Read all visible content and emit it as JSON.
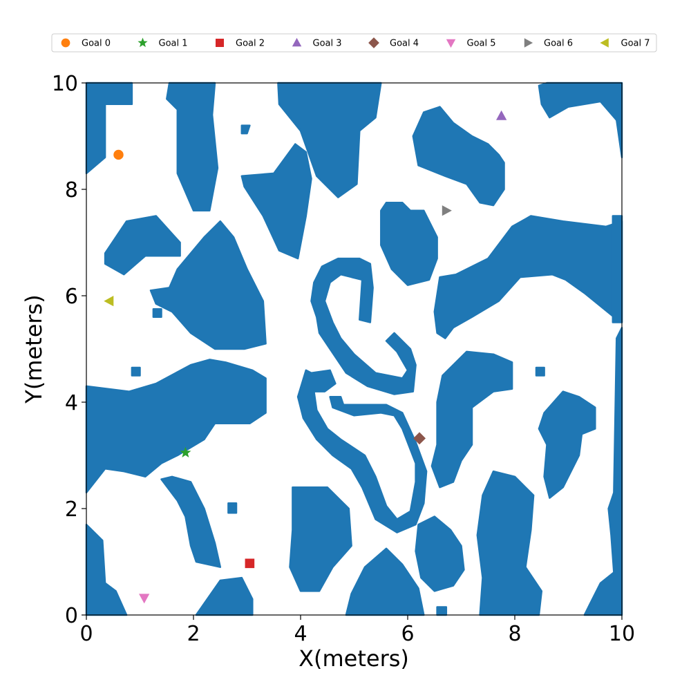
{
  "chart_data": {
    "type": "scatter",
    "title": "",
    "xlabel": "X(meters)",
    "ylabel": "Y(meters)",
    "xlim": [
      0,
      10
    ],
    "ylim": [
      0,
      10
    ],
    "xticks": [
      "0",
      "2",
      "4",
      "6",
      "8",
      "10"
    ],
    "yticks": [
      "0",
      "2",
      "4",
      "6",
      "8",
      "10"
    ],
    "grid": false,
    "legend_position": "top",
    "obstacle_color": "#1f77b4",
    "goals": [
      {
        "name": "Goal 0",
        "x": 0.6,
        "y": 8.65,
        "marker": "circle",
        "color": "#ff7f0e"
      },
      {
        "name": "Goal 1",
        "x": 1.85,
        "y": 3.05,
        "marker": "star",
        "color": "#2ca02c"
      },
      {
        "name": "Goal 2",
        "x": 3.05,
        "y": 0.97,
        "marker": "square",
        "color": "#d62728"
      },
      {
        "name": "Goal 3",
        "x": 7.75,
        "y": 9.38,
        "marker": "triangle-up",
        "color": "#9467bd"
      },
      {
        "name": "Goal 4",
        "x": 6.22,
        "y": 3.32,
        "marker": "diamond",
        "color": "#8c564b"
      },
      {
        "name": "Goal 5",
        "x": 1.08,
        "y": 0.32,
        "marker": "triangle-down",
        "color": "#e377c2"
      },
      {
        "name": "Goal 6",
        "x": 6.72,
        "y": 7.6,
        "marker": "triangle-right",
        "color": "#7f7f7f"
      },
      {
        "name": "Goal 7",
        "x": 0.43,
        "y": 5.9,
        "marker": "triangle-left",
        "color": "#bcbd22"
      }
    ],
    "obstacles": [
      [
        [
          0.0,
          8.3
        ],
        [
          0.35,
          8.6
        ],
        [
          0.35,
          9.6
        ],
        [
          0.85,
          9.6
        ],
        [
          0.85,
          10
        ],
        [
          0.0,
          10
        ]
      ],
      [
        [
          1.55,
          10
        ],
        [
          2.4,
          10
        ],
        [
          2.35,
          9.4
        ],
        [
          2.45,
          8.4
        ],
        [
          2.3,
          7.6
        ],
        [
          2.0,
          7.6
        ],
        [
          1.7,
          8.3
        ],
        [
          1.7,
          9.5
        ],
        [
          1.5,
          9.7
        ]
      ],
      [
        [
          0.35,
          6.8
        ],
        [
          0.75,
          7.4
        ],
        [
          1.3,
          7.5
        ],
        [
          1.75,
          7.0
        ],
        [
          1.75,
          6.75
        ],
        [
          1.1,
          6.75
        ],
        [
          0.7,
          6.4
        ],
        [
          0.35,
          6.6
        ]
      ],
      [
        [
          3.5,
          8.3
        ],
        [
          3.9,
          8.85
        ],
        [
          4.1,
          8.7
        ],
        [
          4.2,
          8.2
        ],
        [
          4.1,
          7.5
        ],
        [
          3.95,
          6.7
        ],
        [
          3.6,
          6.85
        ],
        [
          3.3,
          7.5
        ],
        [
          2.95,
          8.05
        ],
        [
          2.9,
          8.25
        ]
      ],
      [
        [
          1.3,
          5.85
        ],
        [
          1.2,
          6.1
        ],
        [
          1.55,
          6.15
        ],
        [
          1.7,
          6.5
        ],
        [
          2.2,
          7.1
        ],
        [
          2.5,
          7.4
        ],
        [
          2.75,
          7.1
        ],
        [
          3.0,
          6.5
        ],
        [
          3.3,
          5.9
        ],
        [
          3.35,
          5.1
        ],
        [
          2.95,
          5.0
        ],
        [
          2.4,
          5.0
        ],
        [
          1.95,
          5.3
        ],
        [
          1.6,
          5.7
        ]
      ],
      [
        [
          3.58,
          10
        ],
        [
          5.5,
          10
        ],
        [
          5.4,
          9.35
        ],
        [
          5.1,
          9.1
        ],
        [
          5.05,
          8.1
        ],
        [
          4.7,
          7.85
        ],
        [
          4.3,
          8.25
        ],
        [
          4.0,
          9.1
        ],
        [
          3.6,
          9.6
        ]
      ],
      [
        [
          6.3,
          9.45
        ],
        [
          6.6,
          9.55
        ],
        [
          6.85,
          9.25
        ],
        [
          7.2,
          9.0
        ],
        [
          7.5,
          8.85
        ],
        [
          7.7,
          8.65
        ],
        [
          7.8,
          8.5
        ],
        [
          7.8,
          8.0
        ],
        [
          7.6,
          7.7
        ],
        [
          7.35,
          7.75
        ],
        [
          7.1,
          8.1
        ],
        [
          6.7,
          8.25
        ],
        [
          6.2,
          8.45
        ],
        [
          6.1,
          9.0
        ]
      ],
      [
        [
          8.45,
          9.95
        ],
        [
          8.6,
          10
        ],
        [
          10,
          10
        ],
        [
          10,
          8.6
        ],
        [
          9.9,
          9.3
        ],
        [
          9.6,
          9.65
        ],
        [
          9.0,
          9.55
        ],
        [
          8.65,
          9.35
        ],
        [
          8.5,
          9.6
        ]
      ],
      [
        [
          5.5,
          7.6
        ],
        [
          5.6,
          7.75
        ],
        [
          5.9,
          7.75
        ],
        [
          6.05,
          7.6
        ],
        [
          6.3,
          7.6
        ],
        [
          6.55,
          7.1
        ],
        [
          6.55,
          6.7
        ],
        [
          6.4,
          6.3
        ],
        [
          6.0,
          6.2
        ],
        [
          5.7,
          6.5
        ],
        [
          5.5,
          6.95
        ]
      ],
      [
        [
          6.6,
          6.35
        ],
        [
          6.9,
          6.4
        ],
        [
          7.5,
          6.7
        ],
        [
          7.95,
          7.3
        ],
        [
          8.3,
          7.5
        ],
        [
          8.9,
          7.4
        ],
        [
          9.7,
          7.3
        ],
        [
          10,
          7.4
        ],
        [
          10,
          5.5
        ],
        [
          9.85,
          5.6
        ],
        [
          9.3,
          6.05
        ],
        [
          8.95,
          6.3
        ],
        [
          8.7,
          6.4
        ],
        [
          8.1,
          6.35
        ],
        [
          7.7,
          5.9
        ],
        [
          7.2,
          5.6
        ],
        [
          6.85,
          5.4
        ],
        [
          6.7,
          5.2
        ],
        [
          6.55,
          5.3
        ],
        [
          6.5,
          5.7
        ]
      ],
      [
        [
          0.0,
          4.3
        ],
        [
          0.8,
          4.2
        ],
        [
          1.3,
          4.35
        ],
        [
          1.95,
          4.7
        ],
        [
          2.3,
          4.8
        ],
        [
          2.6,
          4.75
        ],
        [
          3.1,
          4.6
        ],
        [
          3.35,
          4.45
        ],
        [
          3.35,
          3.8
        ],
        [
          3.05,
          3.6
        ],
        [
          2.4,
          3.6
        ],
        [
          2.2,
          3.3
        ],
        [
          1.7,
          3.0
        ],
        [
          1.4,
          2.85
        ],
        [
          1.1,
          2.6
        ],
        [
          0.7,
          2.7
        ],
        [
          0.35,
          2.75
        ],
        [
          0.0,
          2.3
        ]
      ],
      [
        [
          1.4,
          2.55
        ],
        [
          1.7,
          2.15
        ],
        [
          1.85,
          1.85
        ],
        [
          1.95,
          1.3
        ],
        [
          2.05,
          1.0
        ],
        [
          2.5,
          0.9
        ],
        [
          2.4,
          1.35
        ],
        [
          2.2,
          2.0
        ],
        [
          1.95,
          2.5
        ],
        [
          1.6,
          2.6
        ]
      ],
      [
        [
          0.0,
          1.7
        ],
        [
          0.3,
          1.4
        ],
        [
          0.35,
          0.6
        ],
        [
          0.55,
          0.45
        ],
        [
          0.75,
          0.0
        ],
        [
          0.0,
          0.0
        ]
      ],
      [
        [
          2.05,
          0.0
        ],
        [
          2.5,
          0.65
        ],
        [
          2.9,
          0.7
        ],
        [
          3.1,
          0.3
        ],
        [
          3.1,
          0.0
        ]
      ],
      [
        [
          3.85,
          2.4
        ],
        [
          4.5,
          2.4
        ],
        [
          4.9,
          2.0
        ],
        [
          4.95,
          1.3
        ],
        [
          4.6,
          0.9
        ],
        [
          4.35,
          0.45
        ],
        [
          4.0,
          0.45
        ],
        [
          3.8,
          0.9
        ],
        [
          3.85,
          1.6
        ]
      ],
      [
        [
          4.85,
          0.0
        ],
        [
          4.95,
          0.4
        ],
        [
          5.2,
          0.9
        ],
        [
          5.6,
          1.25
        ],
        [
          5.9,
          0.95
        ],
        [
          6.2,
          0.5
        ],
        [
          6.3,
          0.0
        ]
      ],
      [
        [
          6.2,
          1.7
        ],
        [
          6.5,
          1.85
        ],
        [
          6.8,
          1.6
        ],
        [
          7.0,
          1.3
        ],
        [
          7.05,
          0.85
        ],
        [
          6.85,
          0.55
        ],
        [
          6.5,
          0.45
        ],
        [
          6.25,
          0.7
        ],
        [
          6.15,
          1.2
        ]
      ],
      [
        [
          7.6,
          2.7
        ],
        [
          8.0,
          2.6
        ],
        [
          8.35,
          2.25
        ],
        [
          8.3,
          1.6
        ],
        [
          8.2,
          0.9
        ],
        [
          8.5,
          0.45
        ],
        [
          8.45,
          0.0
        ],
        [
          7.35,
          0.0
        ],
        [
          7.4,
          0.7
        ],
        [
          7.3,
          1.5
        ],
        [
          7.4,
          2.25
        ]
      ],
      [
        [
          6.65,
          4.5
        ],
        [
          7.1,
          4.95
        ],
        [
          7.6,
          4.9
        ],
        [
          7.95,
          4.75
        ],
        [
          7.95,
          4.25
        ],
        [
          7.6,
          4.2
        ],
        [
          7.2,
          3.9
        ],
        [
          7.2,
          3.2
        ],
        [
          7.0,
          2.9
        ],
        [
          6.85,
          2.5
        ],
        [
          6.6,
          2.4
        ],
        [
          6.45,
          2.8
        ],
        [
          6.55,
          3.2
        ],
        [
          6.55,
          4.0
        ]
      ],
      [
        [
          8.55,
          3.8
        ],
        [
          8.9,
          4.2
        ],
        [
          9.2,
          4.1
        ],
        [
          9.5,
          3.9
        ],
        [
          9.5,
          3.5
        ],
        [
          9.25,
          3.4
        ],
        [
          9.2,
          3.0
        ],
        [
          9.05,
          2.7
        ],
        [
          8.9,
          2.4
        ],
        [
          8.65,
          2.2
        ],
        [
          8.55,
          2.6
        ],
        [
          8.6,
          3.2
        ],
        [
          8.45,
          3.5
        ]
      ],
      [
        [
          9.75,
          2.0
        ],
        [
          9.8,
          1.5
        ],
        [
          9.85,
          0.8
        ],
        [
          9.6,
          0.6
        ],
        [
          9.4,
          0.2
        ],
        [
          9.3,
          0.0
        ],
        [
          10,
          0.0
        ],
        [
          10,
          5.4
        ],
        [
          9.9,
          5.2
        ],
        [
          9.85,
          2.3
        ]
      ],
      [
        [
          4.3,
          5.6
        ],
        [
          4.2,
          5.9
        ],
        [
          4.25,
          6.25
        ],
        [
          4.4,
          6.55
        ],
        [
          4.7,
          6.7
        ],
        [
          5.1,
          6.7
        ],
        [
          5.3,
          6.6
        ],
        [
          5.35,
          6.15
        ],
        [
          5.3,
          5.5
        ],
        [
          5.1,
          5.55
        ],
        [
          5.15,
          6.3
        ],
        [
          4.75,
          6.4
        ],
        [
          4.55,
          6.25
        ],
        [
          4.45,
          5.9
        ],
        [
          4.6,
          5.5
        ],
        [
          4.75,
          5.2
        ],
        [
          5.0,
          4.9
        ],
        [
          5.4,
          4.55
        ],
        [
          5.9,
          4.45
        ],
        [
          6.0,
          4.6
        ],
        [
          5.8,
          4.95
        ],
        [
          5.6,
          5.15
        ],
        [
          5.75,
          5.3
        ],
        [
          6.05,
          5.0
        ],
        [
          6.15,
          4.7
        ],
        [
          6.1,
          4.2
        ],
        [
          5.75,
          4.15
        ],
        [
          5.25,
          4.3
        ],
        [
          4.85,
          4.55
        ],
        [
          4.55,
          5.0
        ],
        [
          4.35,
          5.3
        ]
      ],
      [
        [
          4.1,
          4.6
        ],
        [
          4.2,
          4.55
        ],
        [
          4.55,
          4.6
        ],
        [
          4.65,
          4.35
        ],
        [
          4.45,
          4.2
        ],
        [
          4.25,
          4.2
        ],
        [
          4.3,
          3.85
        ],
        [
          4.5,
          3.5
        ],
        [
          4.75,
          3.3
        ],
        [
          5.2,
          3.0
        ],
        [
          5.4,
          2.6
        ],
        [
          5.6,
          2.05
        ],
        [
          5.8,
          1.8
        ],
        [
          6.05,
          1.95
        ],
        [
          6.15,
          2.5
        ],
        [
          6.15,
          2.85
        ],
        [
          5.9,
          3.5
        ],
        [
          5.75,
          3.75
        ],
        [
          5.5,
          3.8
        ],
        [
          5.0,
          3.75
        ],
        [
          4.6,
          3.9
        ],
        [
          4.55,
          4.1
        ],
        [
          4.75,
          4.1
        ],
        [
          4.8,
          3.95
        ],
        [
          5.15,
          3.95
        ],
        [
          5.6,
          3.95
        ],
        [
          5.9,
          3.8
        ],
        [
          6.15,
          3.25
        ],
        [
          6.35,
          2.7
        ],
        [
          6.3,
          2.1
        ],
        [
          6.15,
          1.7
        ],
        [
          5.8,
          1.55
        ],
        [
          5.4,
          1.8
        ],
        [
          5.15,
          2.4
        ],
        [
          4.95,
          2.75
        ],
        [
          4.6,
          3.0
        ],
        [
          4.3,
          3.3
        ],
        [
          4.05,
          3.7
        ],
        [
          3.95,
          4.1
        ]
      ],
      [
        [
          2.9,
          9.2
        ],
        [
          3.05,
          9.2
        ],
        [
          3.0,
          9.05
        ],
        [
          2.9,
          9.05
        ]
      ],
      [
        [
          1.25,
          5.75
        ],
        [
          1.4,
          5.75
        ],
        [
          1.4,
          5.6
        ],
        [
          1.25,
          5.6
        ]
      ],
      [
        [
          0.85,
          4.65
        ],
        [
          1.0,
          4.65
        ],
        [
          1.0,
          4.5
        ],
        [
          0.85,
          4.5
        ]
      ],
      [
        [
          2.65,
          2.1
        ],
        [
          2.8,
          2.1
        ],
        [
          2.8,
          1.92
        ],
        [
          2.65,
          1.92
        ]
      ],
      [
        [
          8.4,
          4.65
        ],
        [
          8.55,
          4.65
        ],
        [
          8.55,
          4.5
        ],
        [
          8.4,
          4.5
        ]
      ],
      [
        [
          6.55,
          0.15
        ],
        [
          6.72,
          0.15
        ],
        [
          6.72,
          0.0
        ],
        [
          6.55,
          0.0
        ]
      ],
      [
        [
          9.83,
          7.5
        ],
        [
          10,
          7.5
        ],
        [
          10,
          5.5
        ],
        [
          9.83,
          5.5
        ]
      ]
    ]
  }
}
